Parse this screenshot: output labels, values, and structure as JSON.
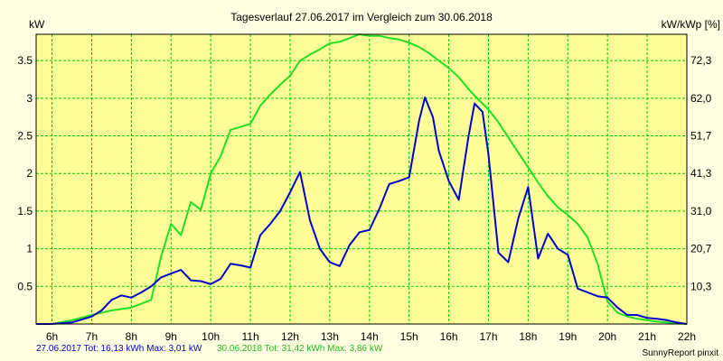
{
  "chart_data": {
    "type": "line",
    "title": "Tagesverlauf 27.06.2017 im Vergleich zum 30.06.2018",
    "ylabel_left": "kW",
    "ylabel_right": "kW/kWp [%]",
    "x_ticks": [
      "6h",
      "7h",
      "8h",
      "9h",
      "10h",
      "11h",
      "12h",
      "13h",
      "14h",
      "15h",
      "16h",
      "17h",
      "18h",
      "19h",
      "20h",
      "21h",
      "22h"
    ],
    "x_range": [
      5.6,
      22.0
    ],
    "ylim": [
      0,
      3.85
    ],
    "y_ticks_left": [
      "0.5",
      "1",
      "1.5",
      "2",
      "2.5",
      "3",
      "3.5"
    ],
    "y_ticks_right": [
      "10,3",
      "20,7",
      "31,0",
      "41,3",
      "51,7",
      "62,0",
      "72,3"
    ],
    "grid": true,
    "colors": {
      "background": "#ffffe1",
      "plot_bg": "#ffff99",
      "grid": "#00cc00",
      "series1": "#0000cc",
      "series2": "#22dd22"
    },
    "series": [
      {
        "name": "27.06.2017",
        "x": [
          5.6,
          6.0,
          6.5,
          7.0,
          7.25,
          7.5,
          7.75,
          8.0,
          8.25,
          8.5,
          8.75,
          9.0,
          9.25,
          9.5,
          9.75,
          10.0,
          10.25,
          10.5,
          10.75,
          11.0,
          11.25,
          11.5,
          11.75,
          12.0,
          12.25,
          12.5,
          12.75,
          13.0,
          13.25,
          13.5,
          13.75,
          14.0,
          14.25,
          14.5,
          14.75,
          15.0,
          15.25,
          15.4,
          15.6,
          15.75,
          16.0,
          16.25,
          16.5,
          16.65,
          16.85,
          17.0,
          17.25,
          17.5,
          17.75,
          18.0,
          18.25,
          18.5,
          18.75,
          19.0,
          19.25,
          19.5,
          19.75,
          20.0,
          20.25,
          20.5,
          20.75,
          21.0,
          21.25,
          21.5,
          21.75,
          22.0
        ],
        "values": [
          0,
          0,
          0.02,
          0.1,
          0.18,
          0.32,
          0.38,
          0.35,
          0.42,
          0.5,
          0.62,
          0.67,
          0.72,
          0.58,
          0.57,
          0.53,
          0.6,
          0.8,
          0.78,
          0.75,
          1.18,
          1.33,
          1.5,
          1.75,
          2.02,
          1.38,
          1.0,
          0.82,
          0.77,
          1.05,
          1.22,
          1.25,
          1.53,
          1.86,
          1.9,
          1.95,
          2.7,
          3.01,
          2.75,
          2.3,
          1.9,
          1.65,
          2.5,
          2.93,
          2.82,
          2.25,
          0.95,
          0.82,
          1.4,
          1.82,
          0.87,
          1.2,
          1.0,
          0.92,
          0.47,
          0.42,
          0.37,
          0.35,
          0.22,
          0.12,
          0.12,
          0.08,
          0.07,
          0.05,
          0.02,
          0
        ]
      },
      {
        "name": "30.06.2018",
        "x": [
          5.6,
          6.0,
          6.5,
          7.0,
          7.5,
          8.0,
          8.5,
          8.75,
          9.0,
          9.25,
          9.5,
          9.75,
          10.0,
          10.25,
          10.5,
          11.0,
          11.25,
          11.5,
          11.75,
          12.0,
          12.25,
          12.5,
          12.75,
          13.0,
          13.25,
          13.5,
          13.75,
          14.0,
          14.25,
          14.5,
          14.75,
          15.0,
          15.25,
          15.5,
          15.75,
          16.0,
          16.25,
          16.5,
          16.75,
          17.0,
          17.25,
          17.5,
          17.75,
          18.0,
          18.25,
          18.5,
          18.75,
          19.0,
          19.25,
          19.5,
          19.75,
          20.0,
          20.25,
          20.5,
          20.75,
          21.0,
          21.25,
          21.5,
          21.75,
          22.0
        ],
        "values": [
          0,
          0,
          0.05,
          0.12,
          0.18,
          0.22,
          0.32,
          0.9,
          1.33,
          1.18,
          1.62,
          1.52,
          2.0,
          2.23,
          2.58,
          2.66,
          2.9,
          3.05,
          3.18,
          3.3,
          3.5,
          3.58,
          3.65,
          3.73,
          3.75,
          3.8,
          3.85,
          3.83,
          3.83,
          3.8,
          3.78,
          3.74,
          3.68,
          3.6,
          3.5,
          3.4,
          3.28,
          3.12,
          2.98,
          2.85,
          2.68,
          2.48,
          2.28,
          2.08,
          1.88,
          1.7,
          1.55,
          1.45,
          1.33,
          1.15,
          0.8,
          0.3,
          0.15,
          0.1,
          0.07,
          0.05,
          0.03,
          0.02,
          0.01,
          0
        ]
      }
    ]
  },
  "footer": {
    "series1_text": "27.06.2017 Tot: 16,13 kWh Max: 3,01 kW",
    "series2_text": "30.06.2018 Tot: 31,42 kWh Max: 3,86 kW",
    "credit": "SunnyReport pinxit"
  }
}
